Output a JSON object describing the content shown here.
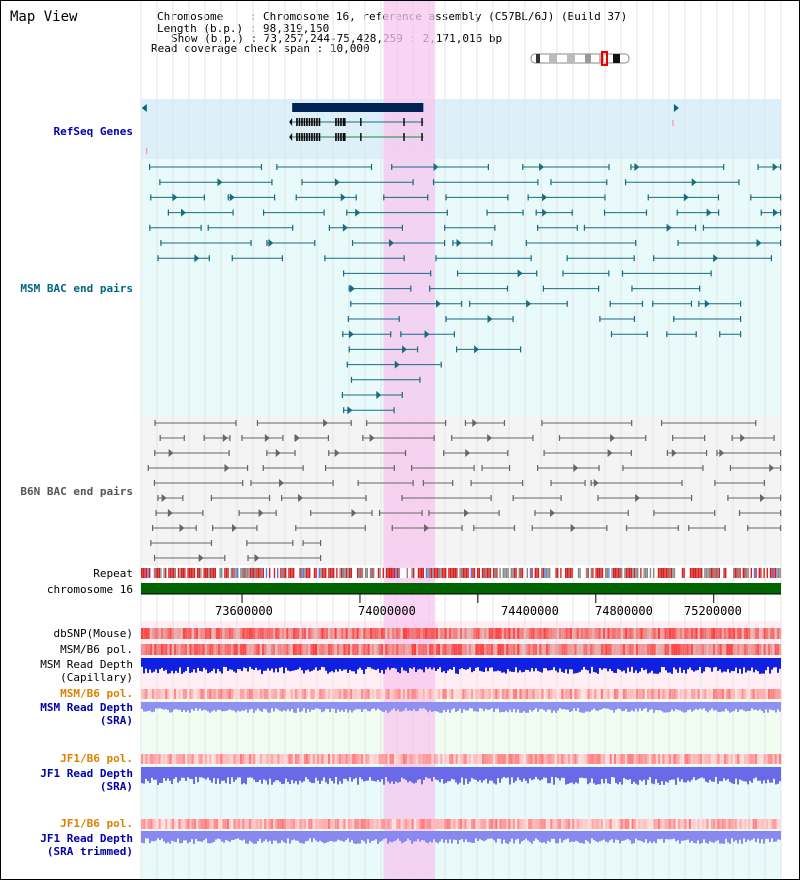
{
  "title": "Map View",
  "info": {
    "chromosome_label": "Chromosome",
    "chromosome_value": "Chromosome 16, reference assembly (C57BL/6J) (Build 37)",
    "length_label": "Length (b.p.)",
    "length_value": "98,319,150",
    "show_label": "Show (b.p.)",
    "show_value": "73,257,244-75,428,259 : 2,171,016 bp",
    "coverage_label": "Read coverage check span",
    "coverage_value": "10,000"
  },
  "region": {
    "start": 73257244,
    "end": 75428259,
    "highlight_start": 74080000,
    "highlight_end": 74255000
  },
  "axis_ticks": [
    {
      "label": "73600000",
      "value": 73600000
    },
    {
      "label": "74000000",
      "value": 74000000
    },
    {
      "label": "74400000",
      "value": 74400000
    },
    {
      "label": "74800000",
      "value": 74800000
    },
    {
      "label": "75200000",
      "value": 75200000
    }
  ],
  "tracks": {
    "refseq": {
      "label": "RefSeq Genes",
      "color": "#0000aa"
    },
    "msm_bac": {
      "label": "MSM BAC end pairs",
      "color": "#006680"
    },
    "b6n_bac": {
      "label": "B6N BAC end pairs",
      "color": "#555555"
    },
    "repeat": {
      "label": "Repeat"
    },
    "chrom": {
      "label": "chromosome 16",
      "color": "#006400"
    },
    "dbsnp": {
      "label": "dbSNP(Mouse)"
    },
    "msm_b6_pol": {
      "label": "MSM/B6 pol."
    },
    "msm_depth_cap": {
      "label1": "MSM Read Depth",
      "label2": "(Capillary)"
    },
    "msm_b6_pol2": {
      "label": "MSM/B6 pol.",
      "color": "#e08000"
    },
    "msm_depth_sra": {
      "label1": "MSM Read Depth",
      "label2": "(SRA)",
      "color": "#0000aa"
    },
    "jf1_b6_pol": {
      "label": "JF1/B6 pol.",
      "color": "#e08000"
    },
    "jf1_depth_sra": {
      "label1": "JF1 Read Depth",
      "label2": "(SRA)",
      "color": "#0000aa"
    },
    "jf1_b6_pol2": {
      "label": "JF1/B6 pol.",
      "color": "#e08000"
    },
    "jf1_depth_trim": {
      "label1": "JF1 Read Depth",
      "label2": "(SRA trimmed)",
      "color": "#0000aa"
    }
  }
}
